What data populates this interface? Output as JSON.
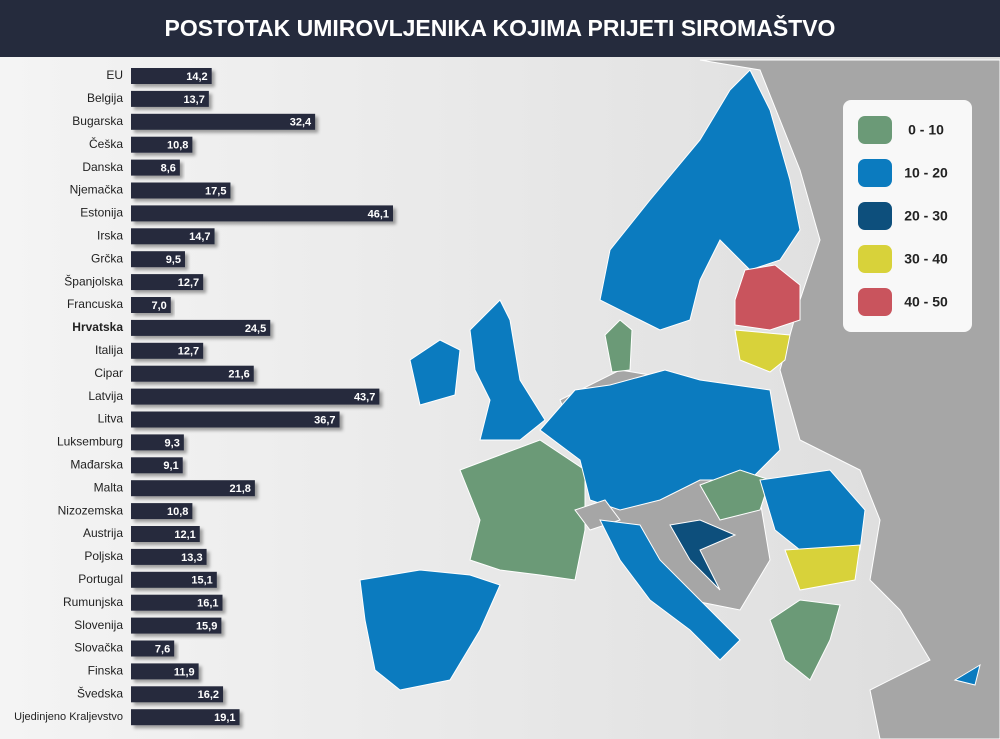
{
  "chart_data": {
    "type": "bar",
    "orientation": "horizontal",
    "title": "POSTOTAK UMIROVLJENIKA KOJIMA PRIJETI SIROMAŠTVO",
    "categories": [
      "EU",
      "Belgija",
      "Bugarska",
      "Češka",
      "Danska",
      "Njemačka",
      "Estonija",
      "Irska",
      "Grčka",
      "Španjolska",
      "Francuska",
      "Hrvatska",
      "Italija",
      "Cipar",
      "Latvija",
      "Litva",
      "Luksemburg",
      "Mađarska",
      "Malta",
      "Nizozemska",
      "Austrija",
      "Poljska",
      "Portugal",
      "Rumunjska",
      "Slovenija",
      "Slovačka",
      "Finska",
      "Švedska",
      "Ujedinjeno Kraljevstvo"
    ],
    "values": [
      14.2,
      13.7,
      32.4,
      10.8,
      8.6,
      17.5,
      46.1,
      14.7,
      9.5,
      12.7,
      7.0,
      24.5,
      12.7,
      21.6,
      43.7,
      36.7,
      9.3,
      9.1,
      21.8,
      10.8,
      12.1,
      13.3,
      15.1,
      16.1,
      15.9,
      7.6,
      11.9,
      16.2,
      19.1
    ],
    "value_labels": [
      "14,2",
      "13,7",
      "32,4",
      "10,8",
      "8,6",
      "17,5",
      "46,1",
      "14,7",
      "9,5",
      "12,7",
      "7,0",
      "24,5",
      "12,7",
      "21,6",
      "43,7",
      "36,7",
      "9,3",
      "9,1",
      "21,8",
      "10,8",
      "12,1",
      "13,3",
      "15,1",
      "16,1",
      "15,9",
      "7,6",
      "11,9",
      "16,2",
      "19,1"
    ],
    "color": "#252b3d",
    "legend": [
      {
        "label": "0 - 10",
        "color": "#6b9a77"
      },
      {
        "label": "10 - 20",
        "color": "#0b7bbf"
      },
      {
        "label": "20 - 30",
        "color": "#0d4f7c"
      },
      {
        "label": "30 - 40",
        "color": "#d8d23a"
      },
      {
        "label": "40 - 50",
        "color": "#c9545d"
      }
    ]
  }
}
